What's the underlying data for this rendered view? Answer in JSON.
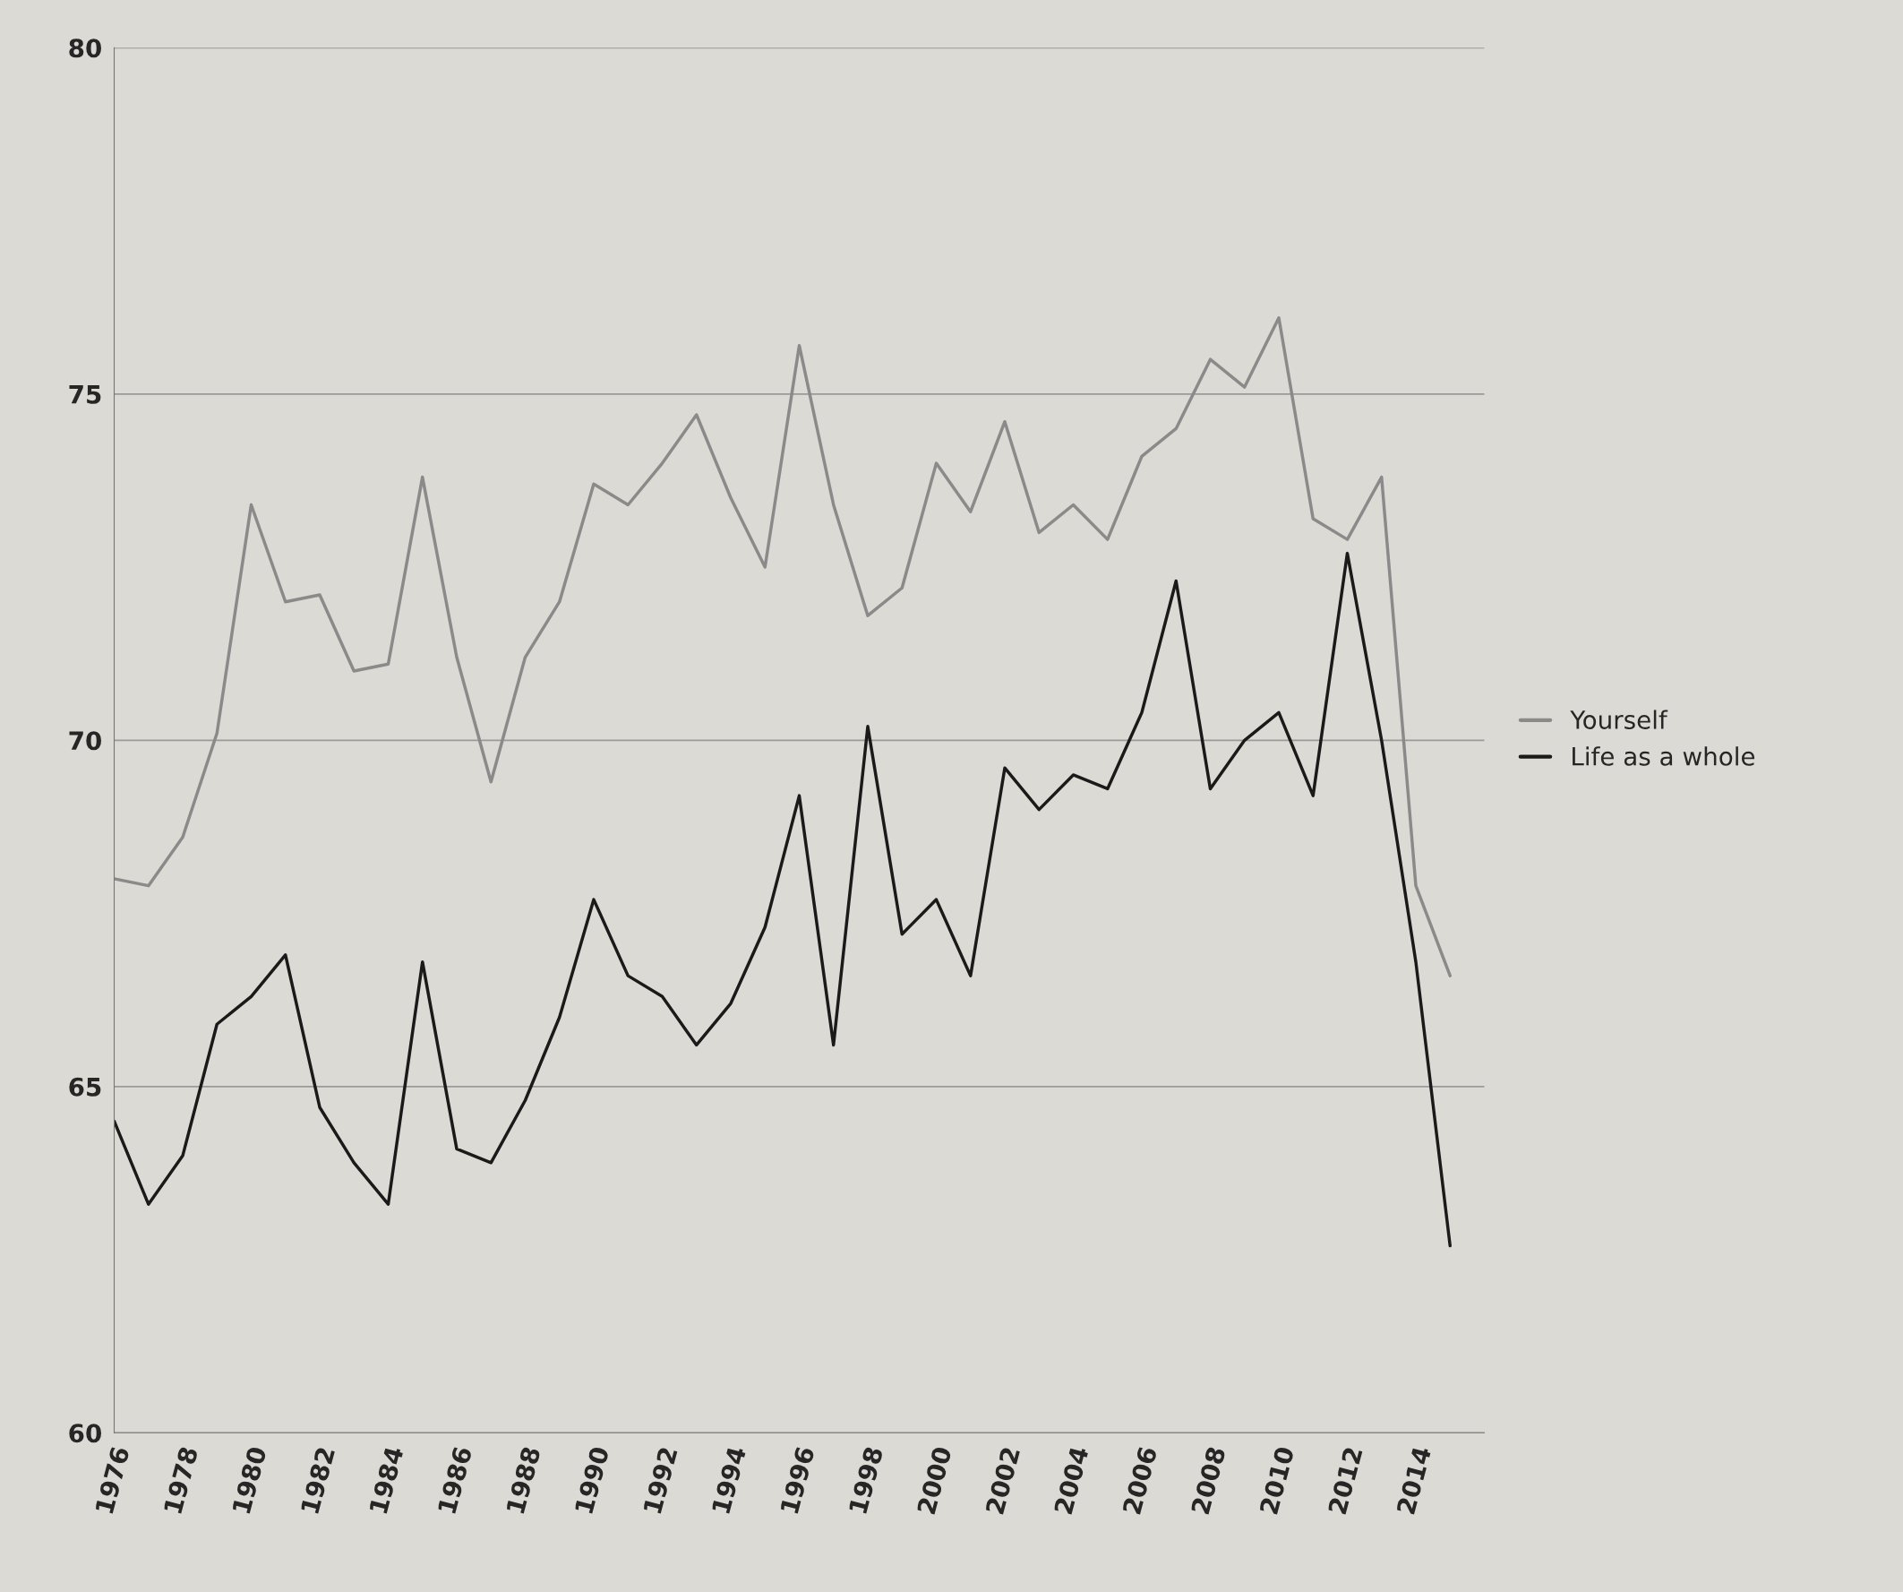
{
  "chart_data": {
    "type": "line",
    "x": [
      1976,
      1977,
      1978,
      1979,
      1980,
      1981,
      1982,
      1983,
      1984,
      1985,
      1986,
      1987,
      1988,
      1989,
      1990,
      1991,
      1992,
      1993,
      1994,
      1995,
      1996,
      1997,
      1998,
      1999,
      2000,
      2001,
      2002,
      2003,
      2004,
      2005,
      2006,
      2007,
      2008,
      2009,
      2010,
      2011,
      2012,
      2013,
      2014,
      2015
    ],
    "series": [
      {
        "name": "Yourself",
        "color": "#8a8a8a",
        "values": [
          68.0,
          67.9,
          68.6,
          70.1,
          73.4,
          72.0,
          72.1,
          71.0,
          71.1,
          73.8,
          71.2,
          69.4,
          71.2,
          72.0,
          73.7,
          73.4,
          74.0,
          74.7,
          73.5,
          72.5,
          75.7,
          73.4,
          71.8,
          72.2,
          74.0,
          73.3,
          74.6,
          73.0,
          73.4,
          72.9,
          74.1,
          74.5,
          75.5,
          75.1,
          76.1,
          73.2,
          72.9,
          73.8,
          67.9,
          66.6
        ]
      },
      {
        "name": "Life as a whole",
        "color": "#1a1a1a",
        "values": [
          64.5,
          63.3,
          64.0,
          65.9,
          66.3,
          66.9,
          64.7,
          63.9,
          63.3,
          66.8,
          64.1,
          63.9,
          64.8,
          66.0,
          67.7,
          66.6,
          66.3,
          65.6,
          66.2,
          67.3,
          69.2,
          65.6,
          70.2,
          67.2,
          67.7,
          66.6,
          69.6,
          69.0,
          69.5,
          69.3,
          70.4,
          72.3,
          69.3,
          70.0,
          70.4,
          69.2,
          72.7,
          70.0,
          66.8,
          62.7
        ]
      }
    ],
    "xlim": [
      1976,
      2016
    ],
    "xticks": [
      1976,
      1978,
      1980,
      1982,
      1984,
      1986,
      1988,
      1990,
      1992,
      1994,
      1996,
      1998,
      2000,
      2002,
      2004,
      2006,
      2008,
      2010,
      2012,
      2014
    ],
    "ylim": [
      60,
      80
    ],
    "yticks": [
      60,
      65,
      70,
      75,
      80
    ],
    "grid": "y",
    "legend": "right",
    "marker": "none",
    "line_style": "solid"
  }
}
